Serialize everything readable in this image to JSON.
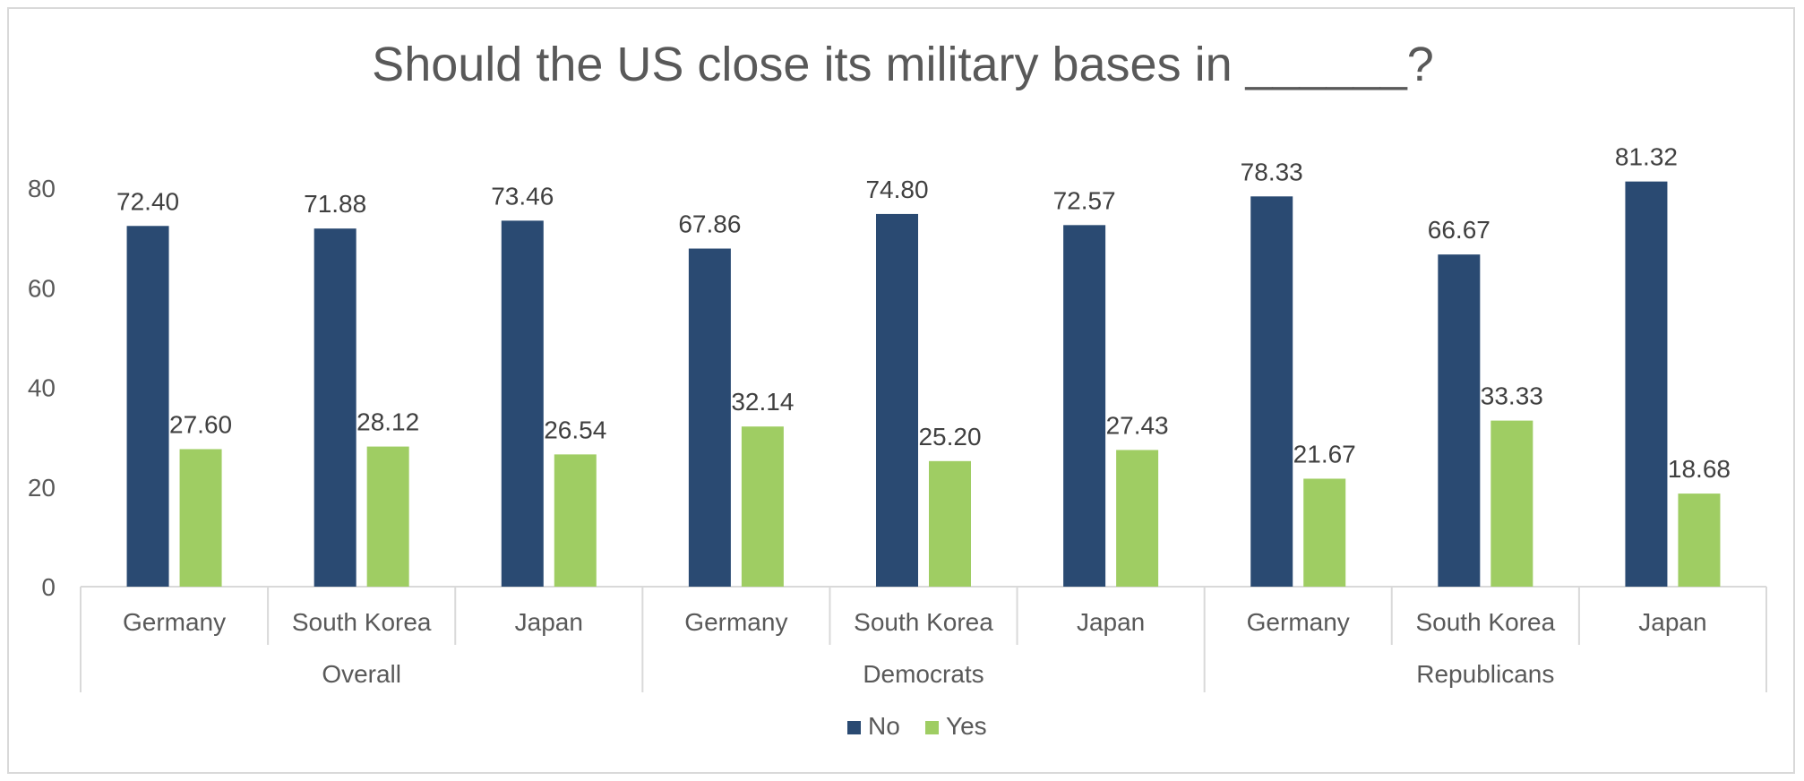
{
  "chart_data": {
    "type": "bar",
    "title": "Should the US close its military bases in ______?",
    "xlabel": "",
    "ylabel": "",
    "ylim": [
      0,
      80
    ],
    "yticks": [
      0,
      20,
      40,
      60,
      80
    ],
    "grid": false,
    "legend_position": "bottom",
    "groups": [
      {
        "label": "Overall",
        "categories": [
          "Germany",
          "South Korea",
          "Japan"
        ]
      },
      {
        "label": "Democrats",
        "categories": [
          "Germany",
          "South Korea",
          "Japan"
        ]
      },
      {
        "label": "Republicans",
        "categories": [
          "Germany",
          "South Korea",
          "Japan"
        ]
      }
    ],
    "series": [
      {
        "name": "No",
        "color": "#2a4a72",
        "values": [
          72.4,
          71.88,
          73.46,
          67.86,
          74.8,
          72.57,
          78.33,
          66.67,
          81.32
        ],
        "labels": [
          "72.40",
          "71.88",
          "73.46",
          "67.86",
          "74.80",
          "72.57",
          "78.33",
          "66.67",
          "81.32"
        ]
      },
      {
        "name": "Yes",
        "color": "#9fcd63",
        "values": [
          27.6,
          28.12,
          26.54,
          32.14,
          25.2,
          27.43,
          21.67,
          33.33,
          18.68
        ],
        "labels": [
          "27.60",
          "28.12",
          "26.54",
          "32.14",
          "25.20",
          "27.43",
          "21.67",
          "33.33",
          "18.68"
        ]
      }
    ]
  }
}
